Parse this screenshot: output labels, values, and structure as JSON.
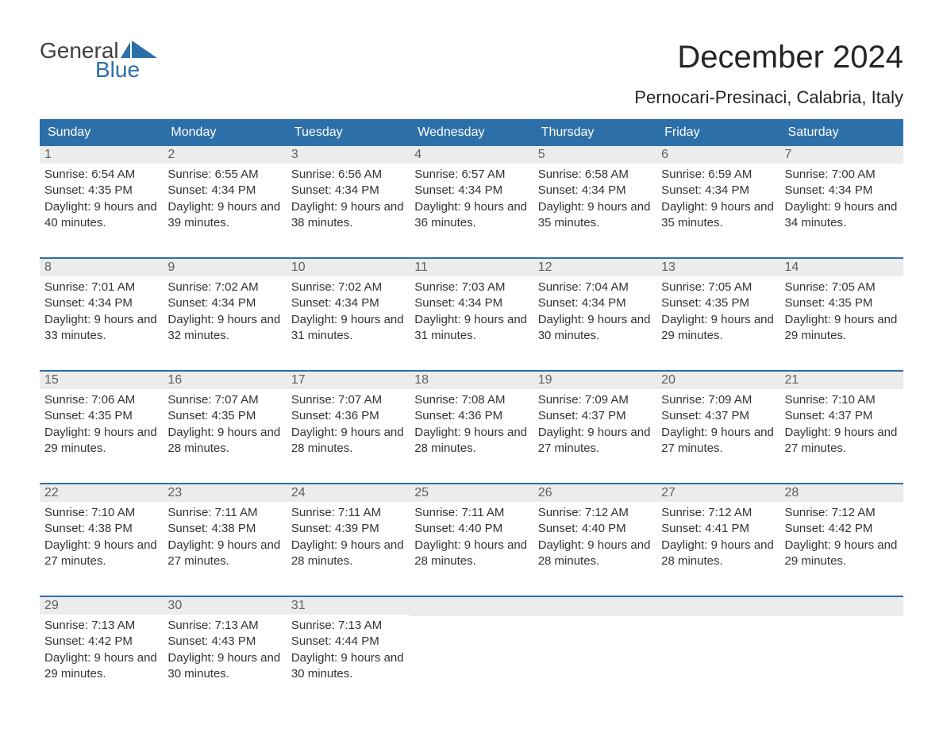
{
  "logo": {
    "text1": "General",
    "text2": "Blue",
    "text_color": "#404040",
    "accent_color": "#2d6fa8",
    "icon_color": "#2d6fa8"
  },
  "title": "December 2024",
  "subtitle": "Pernocari-Presinaci, Calabria, Italy",
  "colors": {
    "header_bg": "#2d6fa8",
    "header_text": "#ffffff",
    "daynum_bg": "#ececec",
    "daynum_text": "#5f5f5f",
    "body_text": "#333333",
    "week_border": "#2d6fa8",
    "page_bg": "#ffffff"
  },
  "typography": {
    "title_fontsize": 40,
    "subtitle_fontsize": 22,
    "header_fontsize": 16,
    "body_fontsize": 15,
    "font_family": "Arial"
  },
  "day_names": [
    "Sunday",
    "Monday",
    "Tuesday",
    "Wednesday",
    "Thursday",
    "Friday",
    "Saturday"
  ],
  "weeks": [
    [
      {
        "num": "1",
        "sunrise": "6:54 AM",
        "sunset": "4:35 PM",
        "daylight": "9 hours and 40 minutes."
      },
      {
        "num": "2",
        "sunrise": "6:55 AM",
        "sunset": "4:34 PM",
        "daylight": "9 hours and 39 minutes."
      },
      {
        "num": "3",
        "sunrise": "6:56 AM",
        "sunset": "4:34 PM",
        "daylight": "9 hours and 38 minutes."
      },
      {
        "num": "4",
        "sunrise": "6:57 AM",
        "sunset": "4:34 PM",
        "daylight": "9 hours and 36 minutes."
      },
      {
        "num": "5",
        "sunrise": "6:58 AM",
        "sunset": "4:34 PM",
        "daylight": "9 hours and 35 minutes."
      },
      {
        "num": "6",
        "sunrise": "6:59 AM",
        "sunset": "4:34 PM",
        "daylight": "9 hours and 35 minutes."
      },
      {
        "num": "7",
        "sunrise": "7:00 AM",
        "sunset": "4:34 PM",
        "daylight": "9 hours and 34 minutes."
      }
    ],
    [
      {
        "num": "8",
        "sunrise": "7:01 AM",
        "sunset": "4:34 PM",
        "daylight": "9 hours and 33 minutes."
      },
      {
        "num": "9",
        "sunrise": "7:02 AM",
        "sunset": "4:34 PM",
        "daylight": "9 hours and 32 minutes."
      },
      {
        "num": "10",
        "sunrise": "7:02 AM",
        "sunset": "4:34 PM",
        "daylight": "9 hours and 31 minutes."
      },
      {
        "num": "11",
        "sunrise": "7:03 AM",
        "sunset": "4:34 PM",
        "daylight": "9 hours and 31 minutes."
      },
      {
        "num": "12",
        "sunrise": "7:04 AM",
        "sunset": "4:34 PM",
        "daylight": "9 hours and 30 minutes."
      },
      {
        "num": "13",
        "sunrise": "7:05 AM",
        "sunset": "4:35 PM",
        "daylight": "9 hours and 29 minutes."
      },
      {
        "num": "14",
        "sunrise": "7:05 AM",
        "sunset": "4:35 PM",
        "daylight": "9 hours and 29 minutes."
      }
    ],
    [
      {
        "num": "15",
        "sunrise": "7:06 AM",
        "sunset": "4:35 PM",
        "daylight": "9 hours and 29 minutes."
      },
      {
        "num": "16",
        "sunrise": "7:07 AM",
        "sunset": "4:35 PM",
        "daylight": "9 hours and 28 minutes."
      },
      {
        "num": "17",
        "sunrise": "7:07 AM",
        "sunset": "4:36 PM",
        "daylight": "9 hours and 28 minutes."
      },
      {
        "num": "18",
        "sunrise": "7:08 AM",
        "sunset": "4:36 PM",
        "daylight": "9 hours and 28 minutes."
      },
      {
        "num": "19",
        "sunrise": "7:09 AM",
        "sunset": "4:37 PM",
        "daylight": "9 hours and 27 minutes."
      },
      {
        "num": "20",
        "sunrise": "7:09 AM",
        "sunset": "4:37 PM",
        "daylight": "9 hours and 27 minutes."
      },
      {
        "num": "21",
        "sunrise": "7:10 AM",
        "sunset": "4:37 PM",
        "daylight": "9 hours and 27 minutes."
      }
    ],
    [
      {
        "num": "22",
        "sunrise": "7:10 AM",
        "sunset": "4:38 PM",
        "daylight": "9 hours and 27 minutes."
      },
      {
        "num": "23",
        "sunrise": "7:11 AM",
        "sunset": "4:38 PM",
        "daylight": "9 hours and 27 minutes."
      },
      {
        "num": "24",
        "sunrise": "7:11 AM",
        "sunset": "4:39 PM",
        "daylight": "9 hours and 28 minutes."
      },
      {
        "num": "25",
        "sunrise": "7:11 AM",
        "sunset": "4:40 PM",
        "daylight": "9 hours and 28 minutes."
      },
      {
        "num": "26",
        "sunrise": "7:12 AM",
        "sunset": "4:40 PM",
        "daylight": "9 hours and 28 minutes."
      },
      {
        "num": "27",
        "sunrise": "7:12 AM",
        "sunset": "4:41 PM",
        "daylight": "9 hours and 28 minutes."
      },
      {
        "num": "28",
        "sunrise": "7:12 AM",
        "sunset": "4:42 PM",
        "daylight": "9 hours and 29 minutes."
      }
    ],
    [
      {
        "num": "29",
        "sunrise": "7:13 AM",
        "sunset": "4:42 PM",
        "daylight": "9 hours and 29 minutes."
      },
      {
        "num": "30",
        "sunrise": "7:13 AM",
        "sunset": "4:43 PM",
        "daylight": "9 hours and 30 minutes."
      },
      {
        "num": "31",
        "sunrise": "7:13 AM",
        "sunset": "4:44 PM",
        "daylight": "9 hours and 30 minutes."
      },
      null,
      null,
      null,
      null
    ]
  ],
  "labels": {
    "sunrise": "Sunrise:",
    "sunset": "Sunset:",
    "daylight": "Daylight:"
  }
}
